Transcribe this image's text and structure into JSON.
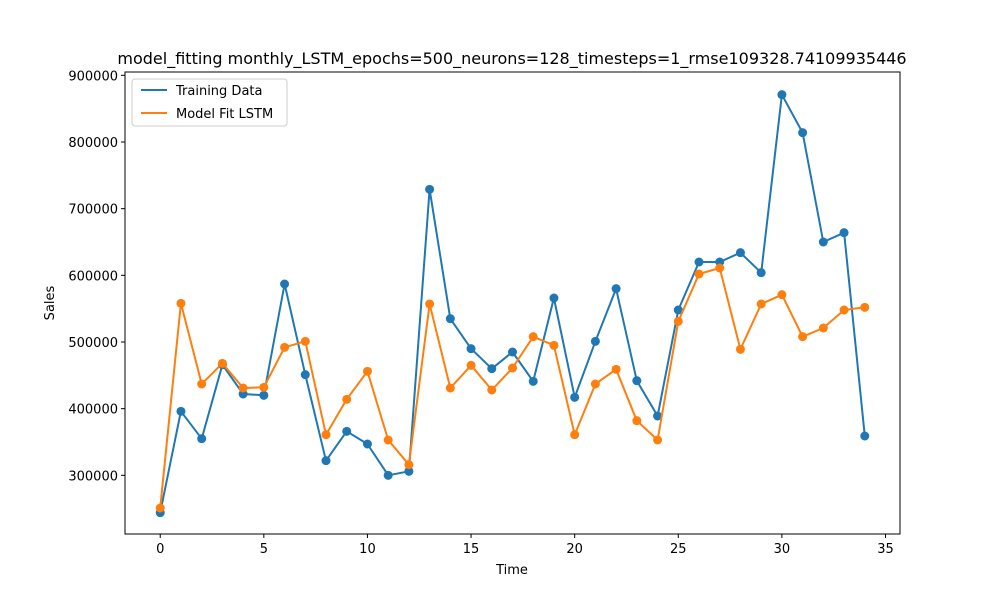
{
  "chart_data": {
    "type": "line",
    "title": "model_fitting monthly_LSTM_epochs=500_neurons=128_timesteps=1_rmse109328.74109935446",
    "xlabel": "Time",
    "ylabel": "Sales",
    "xlim": [
      -1.7,
      35.7
    ],
    "ylim": [
      212000,
      905000
    ],
    "xticks": [
      0,
      5,
      10,
      15,
      20,
      25,
      30,
      35
    ],
    "xtick_labels": [
      "0",
      "5",
      "10",
      "15",
      "20",
      "25",
      "30",
      "35"
    ],
    "yticks": [
      300000,
      400000,
      500000,
      600000,
      700000,
      800000,
      900000
    ],
    "ytick_labels": [
      "300000",
      "400000",
      "500000",
      "600000",
      "700000",
      "800000",
      "900000"
    ],
    "grid": false,
    "legend_position": "top-left",
    "x": [
      0,
      1,
      2,
      3,
      4,
      5,
      6,
      7,
      8,
      9,
      10,
      11,
      12,
      13,
      14,
      15,
      16,
      17,
      18,
      19,
      20,
      21,
      22,
      23,
      24,
      25,
      26,
      27,
      28,
      29,
      30,
      31,
      32,
      33,
      34
    ],
    "series": [
      {
        "name": "Training Data",
        "color": "#1f77b4",
        "values": [
          244000,
          396000,
          355000,
          466000,
          422000,
          420000,
          587000,
          451000,
          322000,
          366000,
          347000,
          300000,
          306000,
          729000,
          535000,
          490000,
          460000,
          485000,
          441000,
          566000,
          417000,
          501000,
          580000,
          442000,
          389000,
          548000,
          620000,
          620000,
          634000,
          604000,
          871000,
          814000,
          650000,
          664000,
          359000
        ]
      },
      {
        "name": "Model Fit LSTM",
        "color": "#ff7f0e",
        "values": [
          251000,
          558000,
          437000,
          468000,
          431000,
          432000,
          492000,
          501000,
          361000,
          414000,
          456000,
          353000,
          316000,
          557000,
          431000,
          465000,
          428000,
          461000,
          508000,
          495000,
          361000,
          437000,
          459000,
          382000,
          353000,
          531000,
          602000,
          611000,
          489000,
          557000,
          571000,
          508000,
          521000,
          548000,
          552000
        ]
      }
    ]
  }
}
